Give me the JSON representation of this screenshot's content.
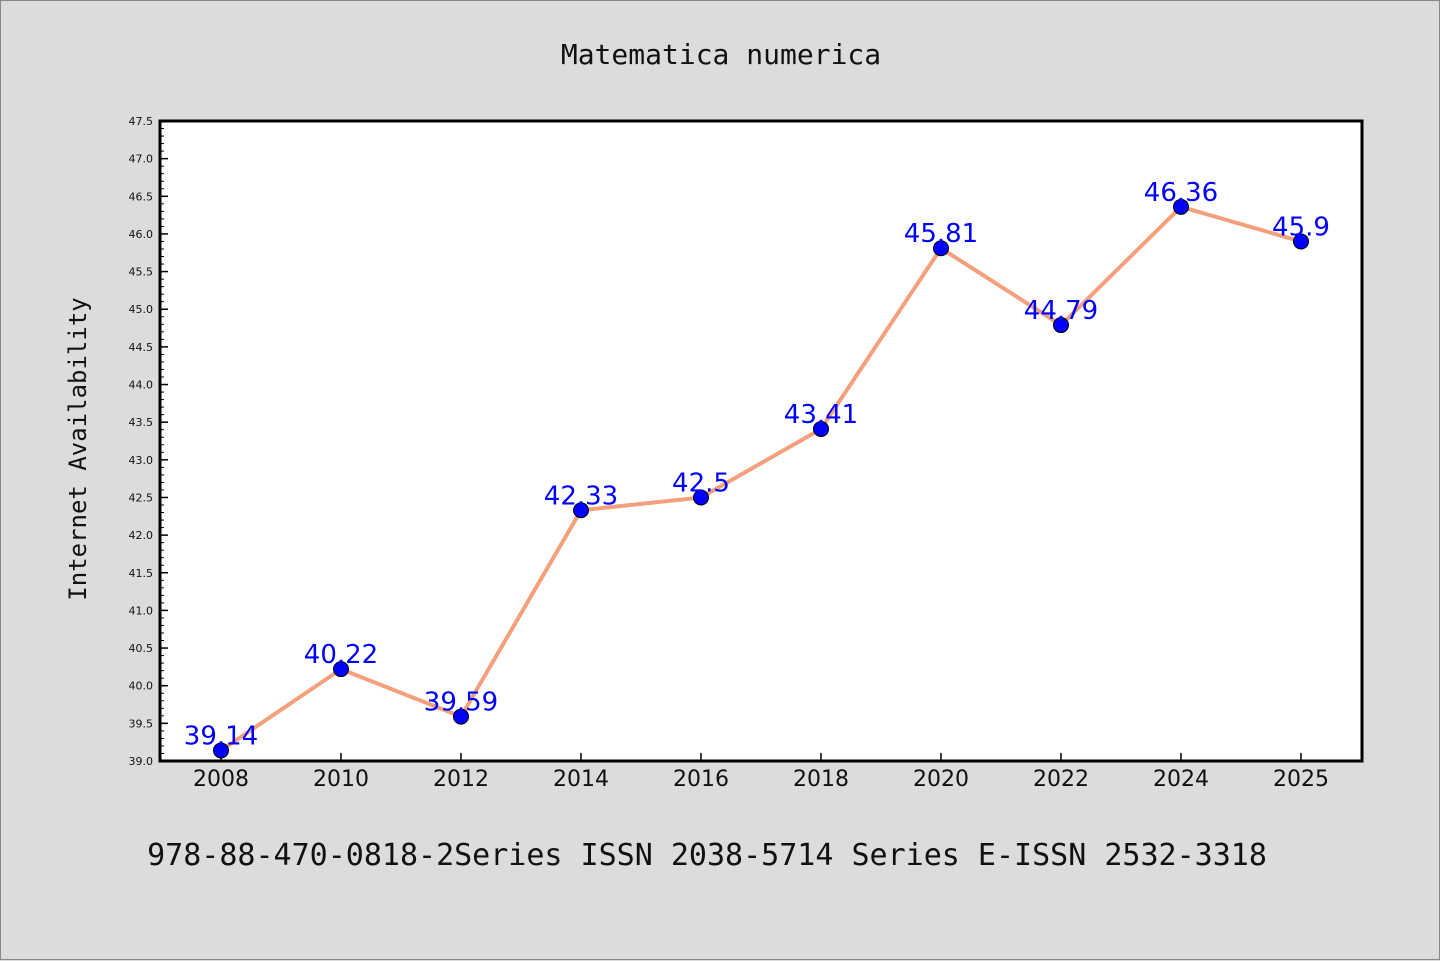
{
  "chart_data": {
    "type": "line",
    "title": "Matematica numerica",
    "ylabel": "Internet Availability",
    "xlabel": "",
    "categories": [
      "2008",
      "2010",
      "2012",
      "2014",
      "2016",
      "2018",
      "2020",
      "2022",
      "2024",
      "2025"
    ],
    "series": [
      {
        "values": [
          39.14,
          40.22,
          39.59,
          42.33,
          42.5,
          43.41,
          45.81,
          44.79,
          46.36,
          45.9
        ],
        "labels": [
          "39.14",
          "40.22",
          "39.59",
          "42.33",
          "42.5",
          "43.41",
          "45.81",
          "44.79",
          "46.36",
          "45.9"
        ],
        "line_color": "#f4a07c",
        "marker_color": "#0000ff"
      }
    ],
    "ylim": [
      39.0,
      47.5
    ],
    "yticks": [
      "39.0",
      "39.5",
      "40.0",
      "40.5",
      "41.0",
      "41.5",
      "42.0",
      "42.5",
      "43.0",
      "43.5",
      "44.0",
      "44.5",
      "45.0",
      "45.5",
      "46.0",
      "46.5",
      "47.0",
      "47.5"
    ],
    "grid": false,
    "legend": "none"
  },
  "footer": {
    "text": "978-88-470-0818-2Series ISSN 2038-5714 Series E-ISSN 2532-3318"
  }
}
